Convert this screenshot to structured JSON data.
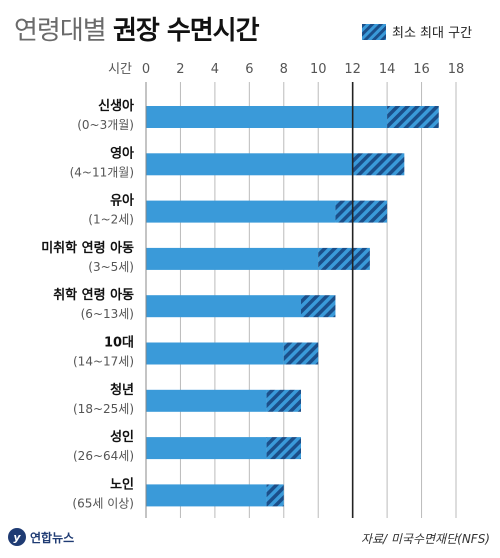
{
  "header": {
    "title_light": "연령대별",
    "title_bold": "권장 수면시간"
  },
  "legend": {
    "label": "최소 최대 구간"
  },
  "footer": {
    "logo_text": "연합뉴스",
    "source": "자료/ 미국수면재단(NFS)"
  },
  "colors": {
    "bar": "#3a9ad9",
    "hatch_dark": "#1b4f8a",
    "ref_line": "#222222",
    "grid": "#bbbbbb"
  },
  "chart_data": {
    "type": "bar",
    "orientation": "horizontal",
    "axis_unit": "시간",
    "xlim": [
      0,
      18
    ],
    "ticks": [
      0,
      2,
      4,
      6,
      8,
      10,
      12,
      14,
      16,
      18
    ],
    "reference_line": 12,
    "categories": [
      {
        "label": "신생아",
        "sublabel": "(0~3개월)",
        "min": 14,
        "max": 17
      },
      {
        "label": "영아",
        "sublabel": "(4~11개월)",
        "min": 12,
        "max": 15
      },
      {
        "label": "유아",
        "sublabel": "(1~2세)",
        "min": 11,
        "max": 14
      },
      {
        "label": "미취학 연령 아동",
        "sublabel": "(3~5세)",
        "min": 10,
        "max": 13
      },
      {
        "label": "취학 연령 아동",
        "sublabel": "(6~13세)",
        "min": 9,
        "max": 11
      },
      {
        "label": "10대",
        "sublabel": "(14~17세)",
        "min": 8,
        "max": 10
      },
      {
        "label": "청년",
        "sublabel": "(18~25세)",
        "min": 7,
        "max": 9
      },
      {
        "label": "성인",
        "sublabel": "(26~64세)",
        "min": 7,
        "max": 9
      },
      {
        "label": "노인",
        "sublabel": "(65세 이상)",
        "min": 7,
        "max": 8
      }
    ]
  }
}
